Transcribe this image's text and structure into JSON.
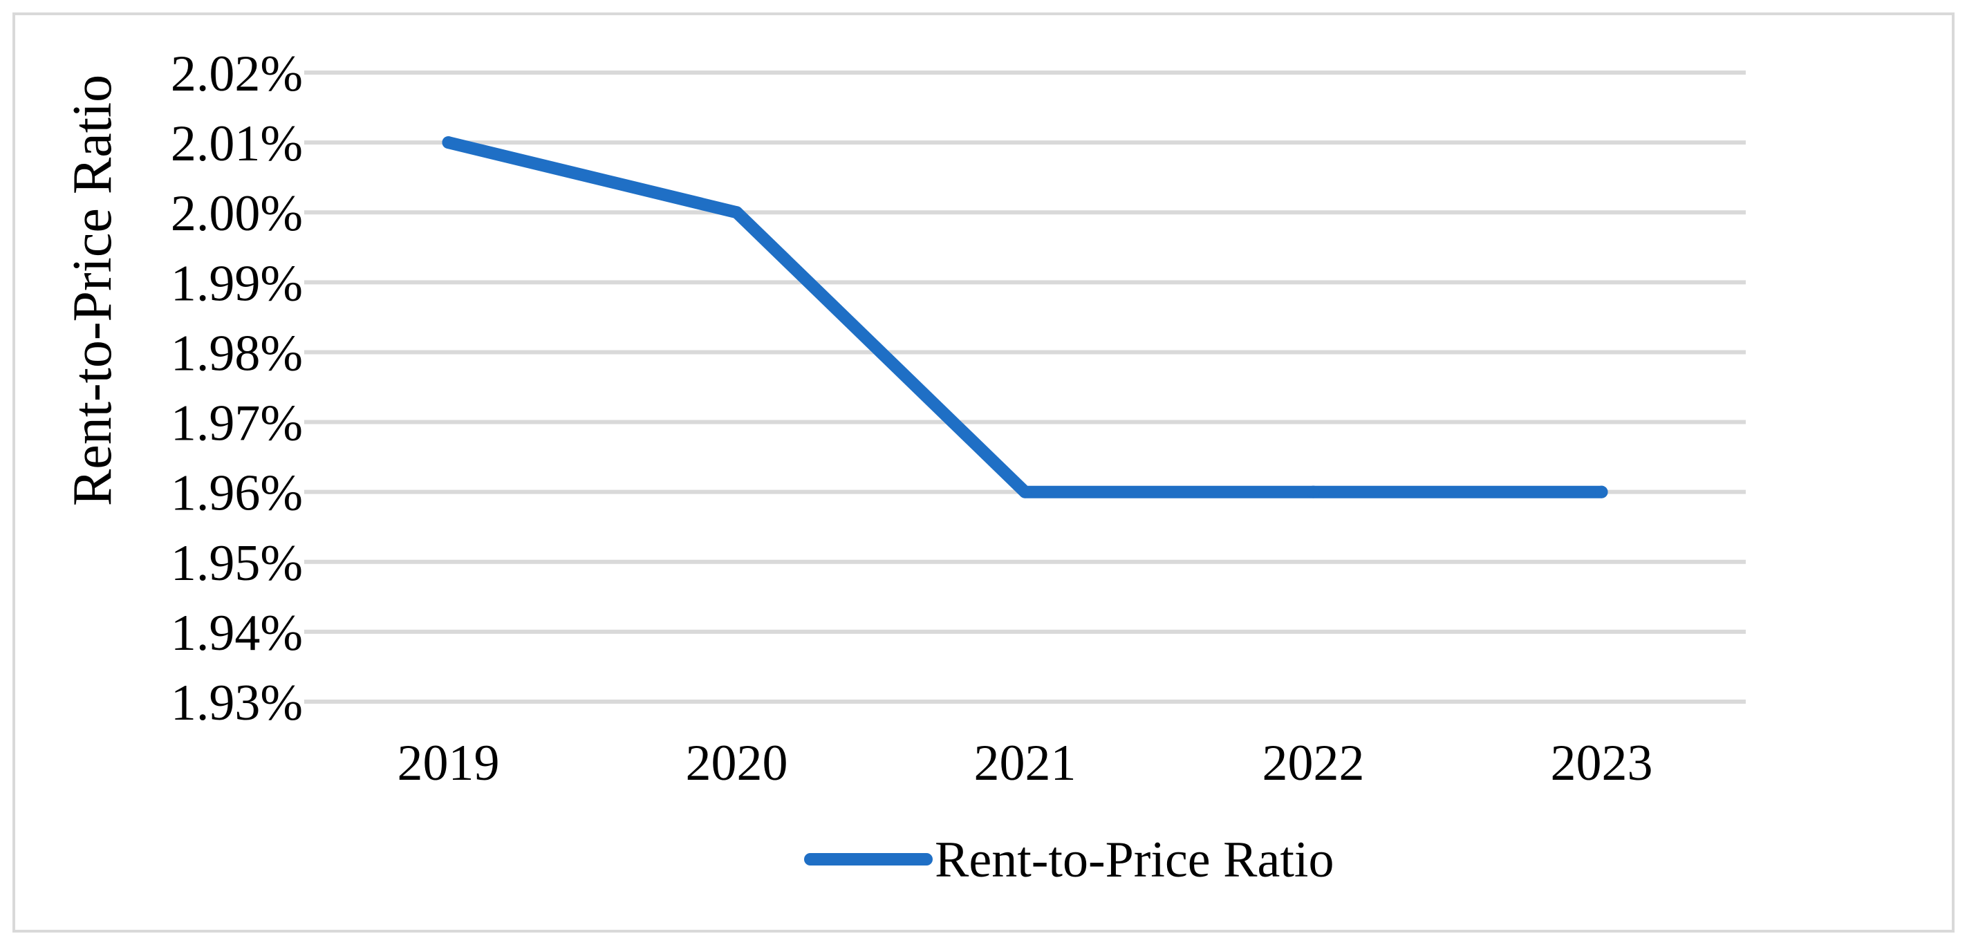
{
  "chart_data": {
    "type": "line",
    "categories": [
      "2019",
      "2020",
      "2021",
      "2022",
      "2023"
    ],
    "series": [
      {
        "name": "Rent-to-Price Ratio",
        "values": [
          2.01,
          2.0,
          1.96,
          1.96,
          1.96
        ]
      }
    ],
    "title": "",
    "xlabel": "",
    "ylabel": "Rent-to-Price Ratio",
    "ylim": [
      1.93,
      2.02
    ],
    "y_tick_step": 0.01,
    "y_tick_format": "percent_2dp",
    "grid": true,
    "legend": {
      "position": "bottom",
      "label": "Rent-to-Price Ratio"
    },
    "colors": {
      "line": "#1f6fc5",
      "grid": "#d9d9d9",
      "frame": "#d9d9d9"
    }
  }
}
